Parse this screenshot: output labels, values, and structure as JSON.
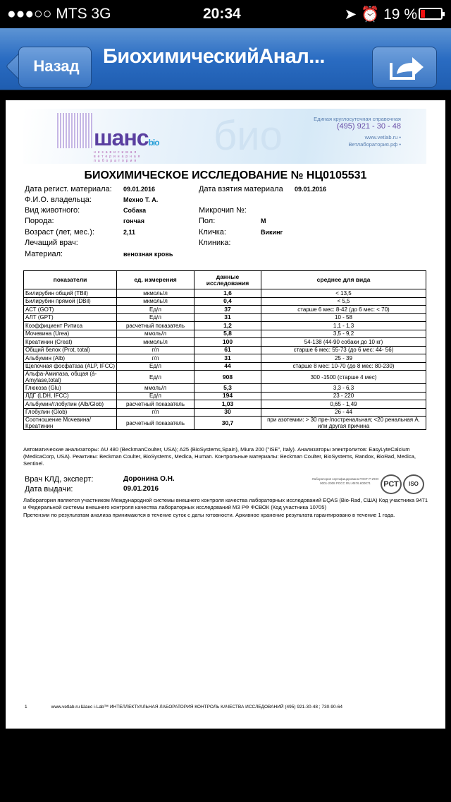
{
  "status_bar": {
    "carrier": "●●●○○ MTS   3G",
    "time": "20:34",
    "battery_text": "19 %",
    "battery_level": 0.19,
    "battery_color": "#e11111",
    "icons": [
      "location-arrow-icon",
      "alarm-icon",
      "battery-icon"
    ]
  },
  "nav": {
    "back_label": "Назад",
    "title": "БиохимическийАнал...",
    "share_icon": "share-icon",
    "bar_color": "#2a6cc2"
  },
  "banner": {
    "logo_text": "шанс",
    "logo_suffix": "bio",
    "logo_subtitle": "независимая ветеринарная лаборатория",
    "helpline_label": "Единая круглосуточная справочная",
    "phone": "(495)  921 - 30 - 48",
    "site1": "www.vetlab.ru •",
    "site2": "Ветлаборатория.рф •",
    "watermark": "био"
  },
  "report": {
    "title": "БИОХИМИЧЕСКОЕ ИССЛЕДОВАНИЕ  № НЦ0105531",
    "fields": {
      "reg_date_label": "Дата регист. материала:",
      "reg_date": "09.01.2016",
      "take_date_label": "Дата взятия материала",
      "take_date": "09.01.2016",
      "owner_label": "Ф.И.О. владельца:",
      "owner": "Мехно Т. А.",
      "species_label": "Вид животного:",
      "species": "Собака",
      "chip_label": "Микрочип №:",
      "breed_label": "Порода:",
      "breed": "гончая",
      "sex_label": "Пол:",
      "sex": "М",
      "age_label": "Возраст (лет, мес.):",
      "age": "2,11",
      "name_label": "Кличка:",
      "name": "Викинг",
      "doctor_label": "Лечащий врач:",
      "clinic_label": "Клиника:",
      "material_label": "Материал:",
      "material": "венозная кровь"
    },
    "table": {
      "headers": [
        "показатели",
        "ед. измерения",
        "данные исследования",
        "среднее для вида"
      ],
      "rows": [
        [
          "Билирубин общий (TBil)",
          "мкмоль/л",
          "1,6",
          "< 13,5"
        ],
        [
          "Билирубин прямой (DBil)",
          "мкмоль/л",
          "0,4",
          "< 5,5"
        ],
        [
          "АСТ (GOT)",
          "Ед/л",
          "37",
          "старше 6 мес: 8-42 (до 6 мес: < 70)"
        ],
        [
          "АЛТ (GPT)",
          "Ед/л",
          "31",
          "10 - 58"
        ],
        [
          "Коэффициент Ритиса",
          "расчетный показатель",
          "1,2",
          "1,1 - 1,3"
        ],
        [
          "Мочевина (Urea)",
          "ммоль/л",
          "5,8",
          "3,5 - 9,2"
        ],
        [
          "Креатинин (Creat)",
          "мкмоль/л",
          "100",
          "54-138 (44-90 собаки до 10 кг)"
        ],
        [
          "Общий белок (Prot, total)",
          "г/л",
          "61",
          "старше 6 мес: 55-73 (до 6 мес: 44- 56)"
        ],
        [
          "Альбумин (Alb)",
          "г/л",
          "31",
          "25 - 39"
        ],
        [
          "Щелочная фосфатаза (ALP, IFCC)",
          "Ед/л",
          "44",
          "старше 8 мес: 10-70 (до 8 мес: 80-230)"
        ],
        [
          "Альфа-Амилаза, общая (á-Amylase,total)",
          "Ед/л",
          "908",
          "300 -1500 (старше 4 мес)"
        ],
        [
          "Глюкоза (Glu)",
          "ммоль/л",
          "5,3",
          "3,3 - 6,3"
        ],
        [
          "ЛДГ (LDH, IFCC)",
          "Ед/л",
          "194",
          "23 - 220"
        ],
        [
          "Альбумин/глобулин (Alb/Glob)",
          "расчетный показатель",
          "1,03",
          "0,65 - 1,49"
        ],
        [
          "Глобулин (Glob)",
          "г/л",
          "30",
          "26 - 44"
        ],
        [
          "Соотношение Мочевина/Креатинин",
          "расчетный показатель",
          "30,7",
          "при азотемии: > 30 пре-/постренальная; <20 ренальная А. или другая причина"
        ]
      ]
    },
    "analyzers_note": "Автоматические анализаторы: AU 480 (BeckmanCoulter, USA); A25 (BioSystems,Spain), Miura 200 (\"ISE\", Italy). Анализаторы электролитов: EasyLyteCalcium (MedicaCorp, USA). Реактивы: Beckman Coulter, BioSystems, Medica, Human. Контрольные материалы: Beckman Coulter, BioSystems, Randox, BioRad, Medica, Sentinel.",
    "expert_label": "Врач КЛД, эксперт:",
    "expert": "Доронина О.Н.",
    "issue_label": "Дата выдачи:",
    "issue_date": "09.01.2016",
    "cert_text": "Лаборатория сертифицирована ГОСТ Р ИСО 9001-2008 РОСС RU.И676.К00071",
    "cert_logo1": "РСТ",
    "cert_logo2": "ISO",
    "participation_note": "Лаборатория является участником Международной  системы внешнего контроля качества лабораторных исследований  EQAS (Bio-Rad, США) Код участника 9471 и Федеральной системы внешнего контроля качества лабораторных исследований МЗ РФ ФСВОК (Код участника 10705)",
    "claims_note": "Претензии по результатам анализа принимаются в течение суток с даты готовности. Архивное хранение результата гарантировано в течение 1 года.",
    "page_number": "1",
    "footer": "www.vetlab.ru Шанс i-Lab™ ИНТЕЛЛЕКТУАЛЬНАЯ ЛАБОРАТОРИЯ КОНТРОЛЬ КАЧЕСТВА ИССЛЕДОВАНИЙ (495) 921-30-48 ; 730-90-64"
  }
}
